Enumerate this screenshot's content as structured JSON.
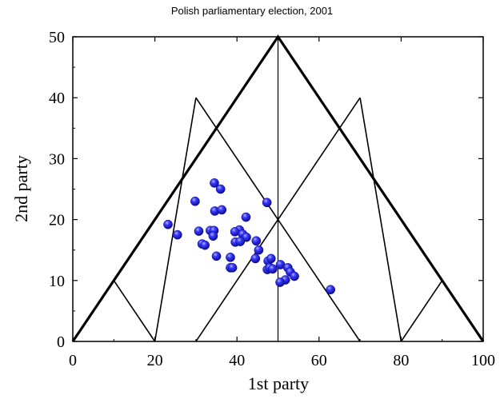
{
  "chart_data": {
    "type": "scatter",
    "title": "Polish parliamentary election, 2001",
    "xlabel": "1st party",
    "ylabel": "2nd party",
    "xlim": [
      0,
      100
    ],
    "ylim": [
      0,
      50
    ],
    "xticks": [
      0,
      20,
      40,
      60,
      80,
      100
    ],
    "yticks": [
      0,
      10,
      20,
      30,
      40,
      50
    ],
    "xtick_labels": [
      "0",
      "20",
      "40",
      "60",
      "80",
      "100"
    ],
    "ytick_labels": [
      "0",
      "10",
      "20",
      "30",
      "40",
      "50"
    ],
    "grid": false,
    "marker_color": "#1a1adc",
    "line_color": "#000000",
    "reference_lines": {
      "outer_triangle": [
        [
          0,
          0
        ],
        [
          50,
          50
        ],
        [
          100,
          0
        ]
      ],
      "segments": [
        [
          [
            30,
            40
          ],
          [
            70,
            0
          ]
        ],
        [
          [
            70,
            40
          ],
          [
            30,
            0
          ]
        ],
        [
          [
            30,
            40
          ],
          [
            20,
            0
          ]
        ],
        [
          [
            70,
            40
          ],
          [
            80,
            0
          ]
        ],
        [
          [
            10,
            10
          ],
          [
            20,
            0
          ]
        ],
        [
          [
            90,
            10
          ],
          [
            80,
            0
          ]
        ],
        [
          [
            50,
            50
          ],
          [
            50,
            0
          ]
        ]
      ]
    },
    "points": [
      [
        34.5,
        26.0
      ],
      [
        36.0,
        25.0
      ],
      [
        29.8,
        23.0
      ],
      [
        47.3,
        22.8
      ],
      [
        34.6,
        21.4
      ],
      [
        36.3,
        21.6
      ],
      [
        42.2,
        20.4
      ],
      [
        23.2,
        19.2
      ],
      [
        25.5,
        17.5
      ],
      [
        30.7,
        18.1
      ],
      [
        33.5,
        18.2
      ],
      [
        34.4,
        18.2
      ],
      [
        34.2,
        17.3
      ],
      [
        40.6,
        18.3
      ],
      [
        39.5,
        18.0
      ],
      [
        41.4,
        17.6
      ],
      [
        42.3,
        17.1
      ],
      [
        31.5,
        16.0
      ],
      [
        32.2,
        15.8
      ],
      [
        39.6,
        16.3
      ],
      [
        40.8,
        16.4
      ],
      [
        44.7,
        16.5
      ],
      [
        45.3,
        15.0
      ],
      [
        35.0,
        14.0
      ],
      [
        38.4,
        13.8
      ],
      [
        44.5,
        13.6
      ],
      [
        47.6,
        13.2
      ],
      [
        48.3,
        13.6
      ],
      [
        38.4,
        12.1
      ],
      [
        38.9,
        12.1
      ],
      [
        47.4,
        11.8
      ],
      [
        48.0,
        12.1
      ],
      [
        48.7,
        11.9
      ],
      [
        50.6,
        12.6
      ],
      [
        52.4,
        12.1
      ],
      [
        53.0,
        11.4
      ],
      [
        54.0,
        10.7
      ],
      [
        51.8,
        10.1
      ],
      [
        50.5,
        9.7
      ],
      [
        62.8,
        8.5
      ]
    ]
  }
}
